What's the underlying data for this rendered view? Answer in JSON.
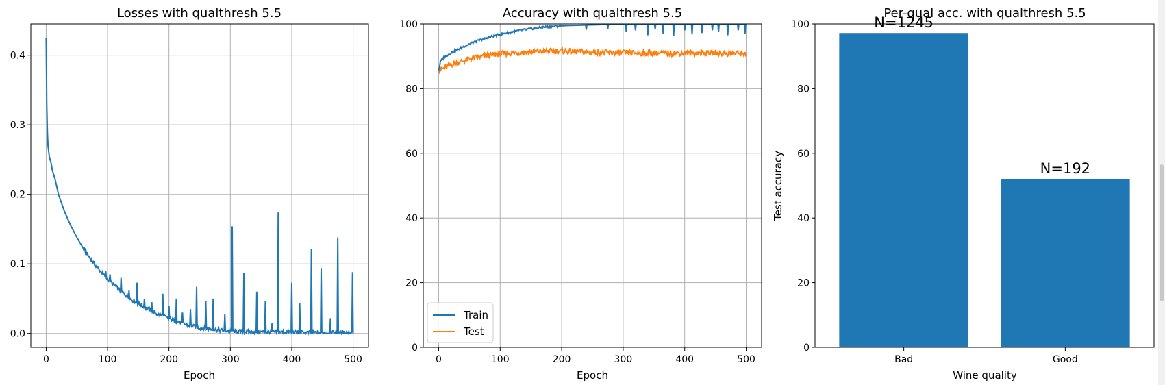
{
  "chart_data": [
    {
      "type": "line",
      "title": "Losses with qualthresh 5.5",
      "xlabel": "Epoch",
      "ylabel": "",
      "xlim": [
        -25,
        525
      ],
      "ylim": [
        -0.02,
        0.445
      ],
      "grid": true,
      "xticks": [
        0,
        100,
        200,
        300,
        400,
        500
      ],
      "xtick_labels": [
        "0",
        "100",
        "200",
        "300",
        "400",
        "500"
      ],
      "yticks": [
        0.0,
        0.1,
        0.2,
        0.3,
        0.4
      ],
      "ytick_labels": [
        "0.0",
        "0.1",
        "0.2",
        "0.3",
        "0.4"
      ],
      "series": [
        {
          "color": "#1f77b4",
          "x": [
            0,
            1,
            2,
            3,
            5,
            8,
            10,
            15,
            20,
            30,
            40,
            50,
            60,
            70,
            80,
            90,
            100,
            110,
            120,
            130,
            140,
            150,
            160,
            170,
            180,
            190,
            200,
            210,
            220,
            230,
            240,
            250,
            260,
            270,
            280,
            290,
            300,
            310,
            320,
            340,
            360,
            380,
            400,
            420,
            440,
            460,
            480,
            500
          ],
          "y": [
            0.425,
            0.33,
            0.29,
            0.27,
            0.255,
            0.245,
            0.235,
            0.22,
            0.2,
            0.175,
            0.155,
            0.138,
            0.123,
            0.11,
            0.098,
            0.088,
            0.078,
            0.07,
            0.062,
            0.055,
            0.048,
            0.043,
            0.038,
            0.033,
            0.028,
            0.025,
            0.021,
            0.018,
            0.015,
            0.012,
            0.01,
            0.008,
            0.007,
            0.006,
            0.005,
            0.004,
            0.004,
            0.003,
            0.003,
            0.002,
            0.002,
            0.002,
            0.002,
            0.001,
            0.001,
            0.001,
            0.001,
            0.001
          ]
        }
      ],
      "spikes": [
        [
          97,
          0.09
        ],
        [
          104,
          0.085
        ],
        [
          112,
          0.07
        ],
        [
          122,
          0.08
        ],
        [
          135,
          0.062
        ],
        [
          148,
          0.073
        ],
        [
          160,
          0.05
        ],
        [
          172,
          0.045
        ],
        [
          190,
          0.057
        ],
        [
          200,
          0.04
        ],
        [
          212,
          0.05
        ],
        [
          222,
          0.03
        ],
        [
          235,
          0.035
        ],
        [
          245,
          0.067
        ],
        [
          260,
          0.047
        ],
        [
          272,
          0.05
        ],
        [
          291,
          0.028
        ],
        [
          303,
          0.154
        ],
        [
          322,
          0.087
        ],
        [
          343,
          0.06
        ],
        [
          357,
          0.047
        ],
        [
          368,
          0.015
        ],
        [
          378,
          0.174
        ],
        [
          400,
          0.073
        ],
        [
          413,
          0.043
        ],
        [
          432,
          0.121
        ],
        [
          448,
          0.094
        ],
        [
          463,
          0.022
        ],
        [
          475,
          0.138
        ],
        [
          499,
          0.088
        ]
      ]
    },
    {
      "type": "line",
      "title": "Accuracy with qualthresh 5.5",
      "xlabel": "Epoch",
      "ylabel": "",
      "xlim": [
        -25,
        525
      ],
      "ylim": [
        0,
        100
      ],
      "grid": true,
      "xticks": [
        0,
        100,
        200,
        300,
        400,
        500
      ],
      "xtick_labels": [
        "0",
        "100",
        "200",
        "300",
        "400",
        "500"
      ],
      "yticks": [
        0,
        20,
        40,
        60,
        80,
        100
      ],
      "ytick_labels": [
        "0",
        "20",
        "40",
        "60",
        "80",
        "100"
      ],
      "legend_position": "lower-left",
      "series": [
        {
          "name": "Train",
          "color": "#1f77b4",
          "x": [
            0,
            3,
            8,
            15,
            25,
            40,
            55,
            70,
            90,
            110,
            130,
            150,
            170,
            190,
            210,
            230,
            250,
            270,
            290,
            310,
            330,
            350,
            370,
            390,
            410,
            430,
            450,
            470,
            490,
            500
          ],
          "y": [
            85.5,
            88.5,
            89.5,
            90.5,
            91.5,
            93,
            94.2,
            95.2,
            96.3,
            97.2,
            97.9,
            98.5,
            99.0,
            99.3,
            99.5,
            99.6,
            99.7,
            99.8,
            99.8,
            99.8,
            99.8,
            99.9,
            99.9,
            99.9,
            99.9,
            99.9,
            99.9,
            99.9,
            99.9,
            99.9
          ],
          "dips": [
            [
              240,
              98.2
            ],
            [
              275,
              98.5
            ],
            [
              305,
              97.5
            ],
            [
              320,
              98.0
            ],
            [
              340,
              96.5
            ],
            [
              352,
              98.3
            ],
            [
              365,
              97.0
            ],
            [
              382,
              96.3
            ],
            [
              400,
              98.0
            ],
            [
              412,
              96.8
            ],
            [
              428,
              97.2
            ],
            [
              445,
              98.0
            ],
            [
              455,
              97.5
            ],
            [
              470,
              96.5
            ],
            [
              487,
              98.0
            ],
            [
              498,
              97.0
            ]
          ]
        },
        {
          "name": "Test",
          "color": "#ff7f0e",
          "x": [
            0,
            10,
            20,
            30,
            40,
            50,
            60,
            80,
            100,
            120,
            140,
            160,
            180,
            200,
            220,
            240,
            260,
            280,
            300,
            320,
            340,
            360,
            380,
            400,
            420,
            440,
            460,
            480,
            500
          ],
          "y": [
            85.5,
            86.5,
            87.3,
            88,
            88.6,
            89.2,
            89.6,
            90.2,
            90.8,
            91.0,
            91.3,
            91.5,
            91.6,
            91.6,
            91.4,
            91.3,
            91.2,
            91.1,
            91.0,
            91.0,
            90.9,
            90.9,
            90.9,
            91.0,
            91.0,
            91.0,
            90.9,
            90.9,
            90.9
          ]
        }
      ]
    },
    {
      "type": "bar",
      "title": "Per-qual acc. with qualthresh 5.5",
      "xlabel": "Wine quality",
      "ylabel": "Test accuracy",
      "ylim": [
        0,
        100
      ],
      "grid": false,
      "categories": [
        "Bad",
        "Good"
      ],
      "values": [
        97.2,
        52.1
      ],
      "bar_labels": [
        "N=1245",
        "N=192"
      ],
      "color": "#1f77b4",
      "yticks": [
        0,
        20,
        40,
        60,
        80,
        100
      ],
      "ytick_labels": [
        "0",
        "20",
        "40",
        "60",
        "80",
        "100"
      ]
    }
  ]
}
